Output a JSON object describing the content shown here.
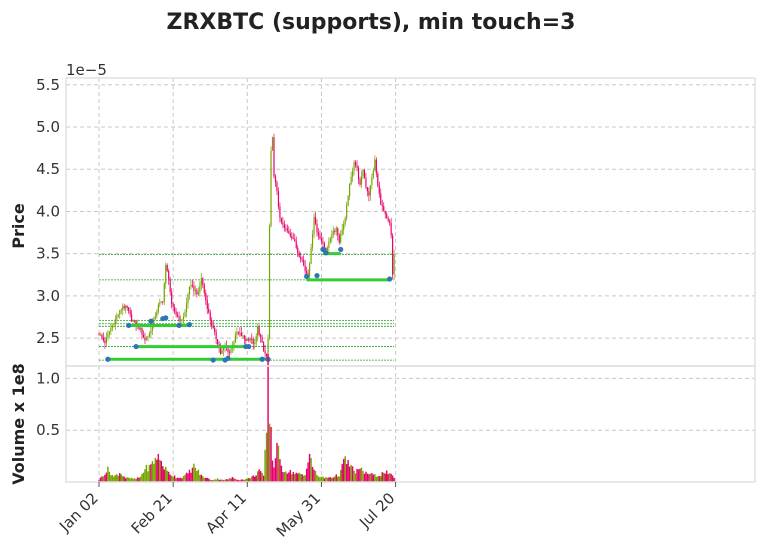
{
  "chart_data": {
    "type": "candlestick",
    "title": "ZRXBTC (supports), min touch=3",
    "price_panel": {
      "ylabel": "Price",
      "offset_label": "1e−5",
      "ylim": [
        2.17,
        5.58
      ],
      "yticks": [
        2.5,
        3.0,
        3.5,
        4.0,
        4.5,
        5.0,
        5.5
      ],
      "ytick_labels": [
        "2.5",
        "3.0",
        "3.5",
        "4.0",
        "4.5",
        "5.0",
        "5.5"
      ],
      "close_path": [
        [
          0,
          2.55
        ],
        [
          4,
          2.45
        ],
        [
          8,
          2.62
        ],
        [
          12,
          2.75
        ],
        [
          16,
          2.88
        ],
        [
          19,
          2.85
        ],
        [
          22,
          2.72
        ],
        [
          25,
          2.66
        ],
        [
          28,
          2.6
        ],
        [
          31,
          2.47
        ],
        [
          34,
          2.55
        ],
        [
          37,
          2.72
        ],
        [
          40,
          2.88
        ],
        [
          43,
          2.95
        ],
        [
          45,
          3.35
        ],
        [
          47,
          3.22
        ],
        [
          49,
          2.88
        ],
        [
          52,
          2.78
        ],
        [
          55,
          2.7
        ],
        [
          58,
          2.8
        ],
        [
          61,
          3.12
        ],
        [
          64,
          3.08
        ],
        [
          67,
          3.02
        ],
        [
          69,
          3.22
        ],
        [
          72,
          2.95
        ],
        [
          75,
          2.72
        ],
        [
          78,
          2.55
        ],
        [
          80,
          2.45
        ],
        [
          82,
          2.32
        ],
        [
          85,
          2.4
        ],
        [
          88,
          2.33
        ],
        [
          91,
          2.46
        ],
        [
          93,
          2.57
        ],
        [
          96,
          2.53
        ],
        [
          99,
          2.48
        ],
        [
          102,
          2.5
        ],
        [
          105,
          2.42
        ],
        [
          107,
          2.62
        ],
        [
          109,
          2.5
        ],
        [
          111,
          2.35
        ],
        [
          113,
          2.28
        ],
        [
          114,
          2.5
        ],
        [
          115,
          3.8
        ],
        [
          116,
          4.7
        ],
        [
          117,
          4.9
        ],
        [
          118,
          4.4
        ],
        [
          120,
          4.25
        ],
        [
          122,
          3.9
        ],
        [
          125,
          3.8
        ],
        [
          128,
          3.75
        ],
        [
          131,
          3.68
        ],
        [
          134,
          3.52
        ],
        [
          137,
          3.42
        ],
        [
          139,
          3.3
        ],
        [
          141,
          3.25
        ],
        [
          143,
          3.55
        ],
        [
          145,
          3.95
        ],
        [
          147,
          3.75
        ],
        [
          149,
          3.7
        ],
        [
          151,
          3.6
        ],
        [
          153,
          3.55
        ],
        [
          155,
          3.62
        ],
        [
          157,
          3.75
        ],
        [
          160,
          3.8
        ],
        [
          162,
          3.65
        ],
        [
          164,
          3.8
        ],
        [
          166,
          3.9
        ],
        [
          168,
          4.2
        ],
        [
          170,
          4.4
        ],
        [
          172,
          4.6
        ],
        [
          174,
          4.5
        ],
        [
          176,
          4.3
        ],
        [
          178,
          4.5
        ],
        [
          180,
          4.3
        ],
        [
          182,
          4.2
        ],
        [
          184,
          4.4
        ],
        [
          186,
          4.6
        ],
        [
          188,
          4.3
        ],
        [
          190,
          4.1
        ],
        [
          192,
          4.0
        ],
        [
          194,
          3.9
        ],
        [
          196,
          3.85
        ],
        [
          197,
          3.7
        ],
        [
          198,
          3.25
        ],
        [
          199,
          3.5
        ]
      ],
      "support_lines": [
        {
          "level": 2.25,
          "x_start": 6,
          "x_end": 114
        },
        {
          "level": 2.4,
          "x_start": 25,
          "x_end": 101
        },
        {
          "level": 2.65,
          "x_start": 20,
          "x_end": 62
        },
        {
          "level": 3.19,
          "x_start": 140,
          "x_end": 196
        },
        {
          "level": 3.5,
          "x_start": 151,
          "x_end": 163
        }
      ],
      "guide_levels": [
        2.24,
        2.4,
        2.64,
        2.67,
        2.71,
        3.19,
        3.49
      ],
      "touch_points": [
        [
          6,
          2.25
        ],
        [
          20,
          2.65
        ],
        [
          25,
          2.4
        ],
        [
          35,
          2.7
        ],
        [
          43,
          2.73
        ],
        [
          45,
          2.74
        ],
        [
          54,
          2.65
        ],
        [
          61,
          2.66
        ],
        [
          77,
          2.24
        ],
        [
          85,
          2.24
        ],
        [
          87,
          2.26
        ],
        [
          99,
          2.4
        ],
        [
          101,
          2.4
        ],
        [
          110,
          2.25
        ],
        [
          114,
          2.25
        ],
        [
          140,
          3.23
        ],
        [
          147,
          3.24
        ],
        [
          151,
          3.55
        ],
        [
          153,
          3.51
        ],
        [
          163,
          3.55
        ],
        [
          196,
          3.2
        ]
      ]
    },
    "volume_panel": {
      "ylabel": "Volume x 1e8",
      "ylim": [
        0,
        1.12
      ],
      "yticks": [
        0.5,
        1.0
      ],
      "ytick_labels": [
        "0.5",
        "1.0"
      ],
      "volume_path": [
        [
          0,
          0.02
        ],
        [
          6,
          0.12
        ],
        [
          10,
          0.05
        ],
        [
          14,
          0.09
        ],
        [
          18,
          0.04
        ],
        [
          25,
          0.03
        ],
        [
          28,
          0.05
        ],
        [
          31,
          0.13
        ],
        [
          34,
          0.14
        ],
        [
          37,
          0.2
        ],
        [
          39,
          0.25
        ],
        [
          41,
          0.22
        ],
        [
          43,
          0.17
        ],
        [
          46,
          0.1
        ],
        [
          49,
          0.07
        ],
        [
          52,
          0.05
        ],
        [
          55,
          0.04
        ],
        [
          58,
          0.06
        ],
        [
          61,
          0.1
        ],
        [
          64,
          0.15
        ],
        [
          66,
          0.12
        ],
        [
          69,
          0.06
        ],
        [
          72,
          0.04
        ],
        [
          76,
          0.02
        ],
        [
          80,
          0.03
        ],
        [
          85,
          0.02
        ],
        [
          90,
          0.04
        ],
        [
          95,
          0.02
        ],
        [
          100,
          0.03
        ],
        [
          105,
          0.06
        ],
        [
          108,
          0.12
        ],
        [
          111,
          0.05
        ],
        [
          113,
          0.5
        ],
        [
          114,
          1.03
        ],
        [
          115,
          0.68
        ],
        [
          116,
          0.55
        ],
        [
          117,
          0.2
        ],
        [
          118,
          0.15
        ],
        [
          120,
          0.4
        ],
        [
          122,
          0.18
        ],
        [
          124,
          0.12
        ],
        [
          128,
          0.1
        ],
        [
          132,
          0.09
        ],
        [
          136,
          0.07
        ],
        [
          139,
          0.06
        ],
        [
          141,
          0.2
        ],
        [
          142,
          0.35
        ],
        [
          144,
          0.15
        ],
        [
          147,
          0.06
        ],
        [
          152,
          0.04
        ],
        [
          158,
          0.05
        ],
        [
          162,
          0.07
        ],
        [
          166,
          0.22
        ],
        [
          168,
          0.18
        ],
        [
          170,
          0.15
        ],
        [
          172,
          0.1
        ],
        [
          176,
          0.12
        ],
        [
          180,
          0.09
        ],
        [
          184,
          0.07
        ],
        [
          188,
          0.06
        ],
        [
          191,
          0.08
        ],
        [
          193,
          0.1
        ],
        [
          196,
          0.07
        ],
        [
          199,
          0.05
        ]
      ]
    },
    "n_bars": 200,
    "xtick_labels": [
      "Jan 02",
      "Feb 21",
      "Apr 11",
      "May 31",
      "Jul 20"
    ],
    "xtick_positions": [
      0,
      50,
      100,
      150,
      200
    ],
    "grid": true,
    "colors": {
      "up": "#77a300",
      "down": "#e8006a",
      "support_line": "#33cc33",
      "touch_marker": "#2b77b5",
      "guide": "#2aa02a",
      "grid": "#c8c8c8",
      "axis_frame": "#e0e0e0"
    }
  }
}
